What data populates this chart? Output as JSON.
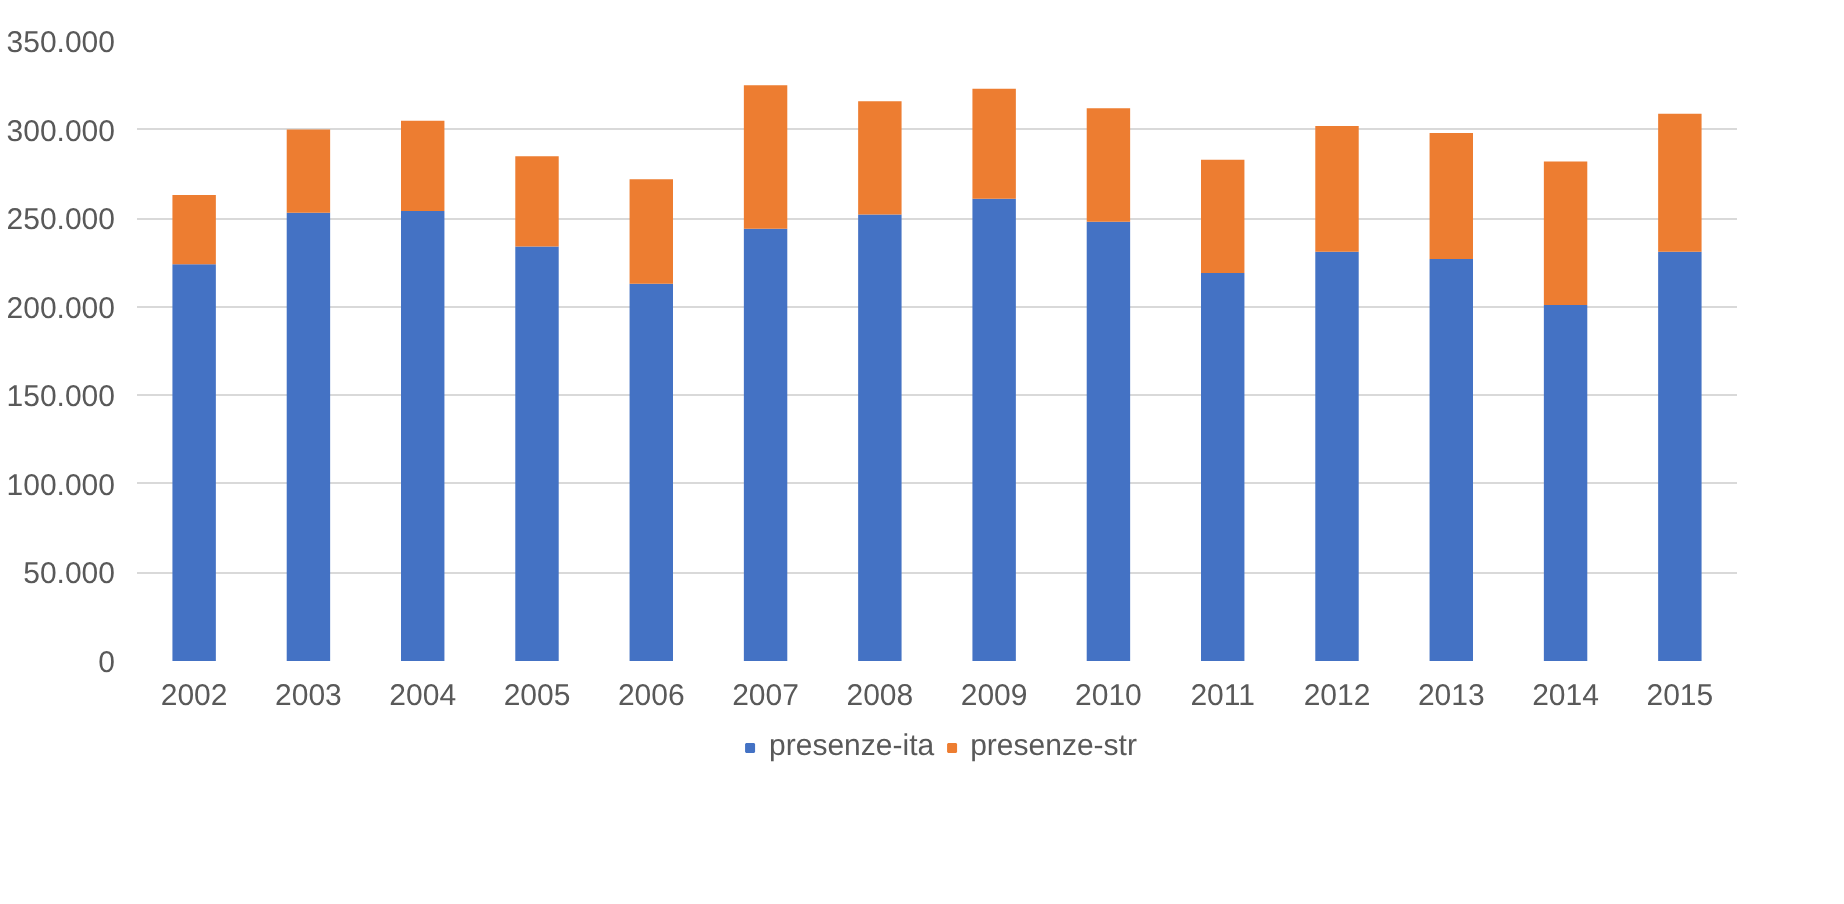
{
  "chart_data": {
    "type": "bar",
    "stacked": true,
    "categories": [
      "2002",
      "2003",
      "2004",
      "2005",
      "2006",
      "2007",
      "2008",
      "2009",
      "2010",
      "2011",
      "2012",
      "2013",
      "2014",
      "2015"
    ],
    "series": [
      {
        "name": "presenze-ita",
        "color": "#4472c4",
        "values": [
          224000,
          253000,
          254000,
          234000,
          213000,
          244000,
          252000,
          261000,
          248000,
          219000,
          231000,
          227000,
          201000,
          231000
        ]
      },
      {
        "name": "presenze-str",
        "color": "#ed7d31",
        "values": [
          39000,
          47000,
          51000,
          51000,
          59000,
          81000,
          64000,
          62000,
          64000,
          64000,
          71000,
          71000,
          81000,
          78000
        ]
      }
    ],
    "ylim": [
      0,
      350000
    ],
    "yticks": [
      {
        "value": 0,
        "label": "0"
      },
      {
        "value": 50000,
        "label": "50.000"
      },
      {
        "value": 100000,
        "label": "100.000"
      },
      {
        "value": 150000,
        "label": "150.000"
      },
      {
        "value": 200000,
        "label": "200.000"
      },
      {
        "value": 250000,
        "label": "250.000"
      },
      {
        "value": 300000,
        "label": "300.000"
      },
      {
        "value": 350000,
        "label": "350.000"
      }
    ],
    "grid": "y",
    "legend": "bottom"
  }
}
